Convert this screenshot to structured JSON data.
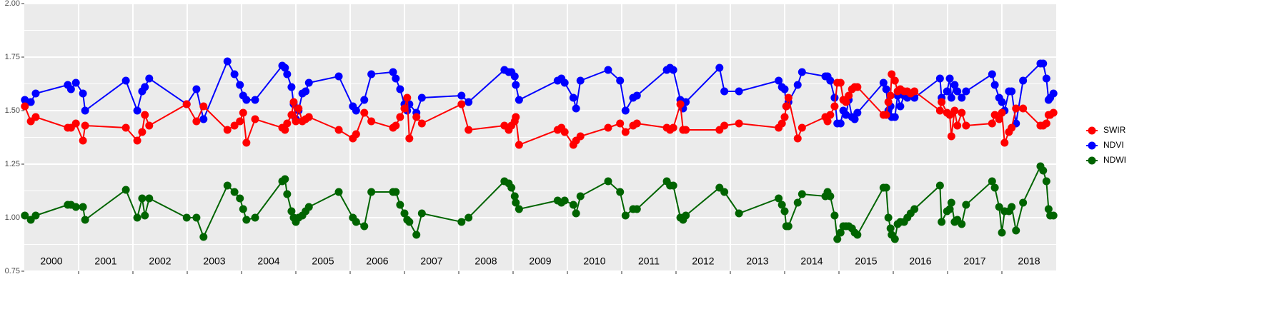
{
  "chart_data": {
    "type": "line",
    "x": [
      2000.01,
      2000.12,
      2000.21,
      2000.8,
      2000.86,
      2000.95,
      2001.08,
      2001.12,
      2001.87,
      2002.08,
      2002.17,
      2002.22,
      2002.3,
      2002.99,
      2003.17,
      2003.3,
      2003.74,
      2003.87,
      2003.97,
      2004.03,
      2004.09,
      2004.25,
      2004.75,
      2004.8,
      2004.84,
      2004.92,
      2004.96,
      2005.0,
      2005.05,
      2005.12,
      2005.18,
      2005.24,
      2005.79,
      2006.05,
      2006.11,
      2006.26,
      2006.39,
      2006.79,
      2006.84,
      2006.92,
      2007.0,
      2007.05,
      2007.09,
      2007.22,
      2007.32,
      2008.05,
      2008.18,
      2008.84,
      2008.92,
      2008.97,
      2009.03,
      2009.05,
      2009.11,
      2009.82,
      2009.89,
      2009.95,
      2010.11,
      2010.16,
      2010.24,
      2010.75,
      2010.97,
      2011.07,
      2011.21,
      2011.28,
      2011.83,
      2011.89,
      2011.95,
      2012.08,
      2012.13,
      2012.18,
      2012.8,
      2012.89,
      2013.16,
      2013.89,
      2013.95,
      2014.0,
      2014.03,
      2014.07,
      2014.24,
      2014.32,
      2014.75,
      2014.79,
      2014.84,
      2014.92,
      2014.97,
      2015.03,
      2015.08,
      2015.13,
      2015.18,
      2015.24,
      2015.29,
      2015.34,
      2015.82,
      2015.87,
      2015.91,
      2015.95,
      2015.97,
      2016.03,
      2016.08,
      2016.13,
      2016.2,
      2016.26,
      2016.32,
      2016.39,
      2016.86,
      2016.89,
      2016.99,
      2017.04,
      2017.07,
      2017.13,
      2017.18,
      2017.26,
      2017.34,
      2017.82,
      2017.87,
      2017.95,
      2018.0,
      2018.05,
      2018.13,
      2018.18,
      2018.26,
      2018.39,
      2018.71,
      2018.76,
      2018.82,
      2018.86,
      2018.89,
      2018.95
    ],
    "series": [
      {
        "name": "SWIR",
        "color": "#ff0000",
        "values": [
          1.52,
          1.45,
          1.47,
          1.42,
          1.42,
          1.44,
          1.36,
          1.43,
          1.42,
          1.36,
          1.4,
          1.48,
          1.43,
          1.53,
          1.45,
          1.52,
          1.41,
          1.43,
          1.45,
          1.49,
          1.35,
          1.46,
          1.42,
          1.41,
          1.44,
          1.48,
          1.54,
          1.45,
          1.51,
          1.45,
          1.46,
          1.47,
          1.41,
          1.37,
          1.39,
          1.49,
          1.45,
          1.42,
          1.43,
          1.47,
          1.51,
          1.56,
          1.37,
          1.47,
          1.44,
          1.53,
          1.41,
          1.43,
          1.41,
          1.43,
          1.45,
          1.47,
          1.34,
          1.41,
          1.42,
          1.4,
          1.34,
          1.36,
          1.38,
          1.42,
          1.44,
          1.4,
          1.43,
          1.44,
          1.42,
          1.41,
          1.42,
          1.53,
          1.41,
          1.41,
          1.41,
          1.43,
          1.44,
          1.42,
          1.44,
          1.47,
          1.52,
          1.56,
          1.37,
          1.42,
          1.47,
          1.45,
          1.48,
          1.52,
          1.63,
          1.63,
          1.55,
          1.54,
          1.57,
          1.6,
          1.61,
          1.61,
          1.48,
          1.48,
          1.54,
          1.57,
          1.67,
          1.64,
          1.59,
          1.6,
          1.59,
          1.59,
          1.58,
          1.59,
          1.5,
          1.54,
          1.49,
          1.48,
          1.38,
          1.5,
          1.43,
          1.49,
          1.43,
          1.44,
          1.48,
          1.46,
          1.49,
          1.35,
          1.4,
          1.42,
          1.51,
          1.51,
          1.43,
          1.43,
          1.44,
          1.48,
          1.48,
          1.49
        ]
      },
      {
        "name": "NDVI",
        "color": "#0000ff",
        "values": [
          1.55,
          1.54,
          1.58,
          1.62,
          1.6,
          1.63,
          1.58,
          1.5,
          1.64,
          1.5,
          1.59,
          1.61,
          1.65,
          1.53,
          1.6,
          1.46,
          1.73,
          1.67,
          1.62,
          1.57,
          1.55,
          1.55,
          1.71,
          1.7,
          1.67,
          1.61,
          1.53,
          1.46,
          1.5,
          1.58,
          1.59,
          1.63,
          1.66,
          1.52,
          1.5,
          1.55,
          1.67,
          1.68,
          1.65,
          1.6,
          1.53,
          1.5,
          1.53,
          1.49,
          1.56,
          1.57,
          1.54,
          1.69,
          1.68,
          1.68,
          1.66,
          1.62,
          1.55,
          1.64,
          1.65,
          1.63,
          1.56,
          1.51,
          1.64,
          1.69,
          1.64,
          1.5,
          1.56,
          1.57,
          1.69,
          1.7,
          1.69,
          1.55,
          1.51,
          1.54,
          1.7,
          1.59,
          1.59,
          1.64,
          1.61,
          1.6,
          1.52,
          1.54,
          1.62,
          1.68,
          1.66,
          1.66,
          1.64,
          1.56,
          1.44,
          1.44,
          1.5,
          1.48,
          1.55,
          1.47,
          1.46,
          1.49,
          1.63,
          1.6,
          1.5,
          1.52,
          1.47,
          1.47,
          1.57,
          1.52,
          1.57,
          1.56,
          1.58,
          1.56,
          1.65,
          1.56,
          1.59,
          1.65,
          1.56,
          1.62,
          1.59,
          1.56,
          1.59,
          1.67,
          1.62,
          1.56,
          1.54,
          1.5,
          1.59,
          1.59,
          1.44,
          1.64,
          1.72,
          1.72,
          1.65,
          1.55,
          1.56,
          1.58
        ]
      },
      {
        "name": "NDWI",
        "color": "#006400",
        "values": [
          1.01,
          0.99,
          1.01,
          1.06,
          1.06,
          1.05,
          1.05,
          0.99,
          1.13,
          1.0,
          1.09,
          1.01,
          1.09,
          1.0,
          1.0,
          0.91,
          1.15,
          1.12,
          1.09,
          1.04,
          0.99,
          1.0,
          1.17,
          1.18,
          1.11,
          1.03,
          1.0,
          0.98,
          1.0,
          1.01,
          1.03,
          1.05,
          1.12,
          1.0,
          0.98,
          0.96,
          1.12,
          1.12,
          1.12,
          1.06,
          1.02,
          0.99,
          0.98,
          0.92,
          1.02,
          0.98,
          1.0,
          1.17,
          1.16,
          1.14,
          1.1,
          1.07,
          1.04,
          1.08,
          1.07,
          1.08,
          1.06,
          1.02,
          1.1,
          1.17,
          1.12,
          1.01,
          1.04,
          1.04,
          1.17,
          1.15,
          1.15,
          1.0,
          0.99,
          1.01,
          1.14,
          1.12,
          1.02,
          1.09,
          1.06,
          1.03,
          0.96,
          0.96,
          1.07,
          1.11,
          1.1,
          1.12,
          1.1,
          1.01,
          0.9,
          0.93,
          0.96,
          0.96,
          0.96,
          0.95,
          0.93,
          0.92,
          1.14,
          1.14,
          1.0,
          0.95,
          0.92,
          0.9,
          0.97,
          0.98,
          0.98,
          1.0,
          1.02,
          1.04,
          1.15,
          0.98,
          1.03,
          1.04,
          1.07,
          0.98,
          0.99,
          0.97,
          1.06,
          1.17,
          1.14,
          1.05,
          0.93,
          1.03,
          1.03,
          1.05,
          0.94,
          1.07,
          1.24,
          1.22,
          1.17,
          1.04,
          1.01,
          1.01
        ]
      }
    ],
    "xlim": [
      2000,
      2019
    ],
    "xticks": [
      2001,
      2002,
      2003,
      2004,
      2005,
      2006,
      2007,
      2008,
      2009,
      2010,
      2011,
      2012,
      2013,
      2014,
      2015,
      2016,
      2017,
      2018
    ],
    "x_labels": [
      "2000",
      "2001",
      "2002",
      "2003",
      "2004",
      "2005",
      "2006",
      "2007",
      "2008",
      "2009",
      "2010",
      "2011",
      "2012",
      "2013",
      "2014",
      "2015",
      "2016",
      "2017",
      "2018"
    ],
    "ylim": [
      0.75,
      2.0
    ],
    "yticks": [
      {
        "value": 0.75,
        "label": "0.75"
      },
      {
        "value": 1,
        "label": "1.00"
      },
      {
        "value": 1.25,
        "label": "1.25"
      },
      {
        "value": 1.5,
        "label": "1.50"
      },
      {
        "value": 1.75,
        "label": "1.75"
      },
      {
        "value": 2,
        "label": "2.00"
      }
    ],
    "grid": true,
    "legend": "right"
  }
}
